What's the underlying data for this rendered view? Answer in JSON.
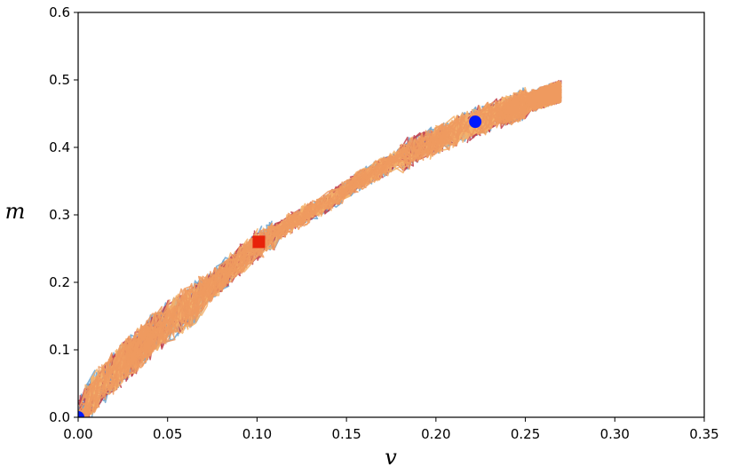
{
  "chart_data": {
    "type": "line",
    "title": "",
    "xlabel": "v",
    "ylabel": "m",
    "xlim": [
      0,
      0.35
    ],
    "ylim": [
      0,
      0.6
    ],
    "xticks": [
      "0.00",
      "0.05",
      "0.10",
      "0.15",
      "0.20",
      "0.25",
      "0.30",
      "0.35"
    ],
    "yticks": [
      "0.0",
      "0.1",
      "0.2",
      "0.3",
      "0.4",
      "0.5",
      "0.6"
    ],
    "grid": false,
    "legend": "none",
    "band_centerline": [
      [
        0.0,
        0.0
      ],
      [
        0.01,
        0.04
      ],
      [
        0.025,
        0.08
      ],
      [
        0.045,
        0.13
      ],
      [
        0.065,
        0.17
      ],
      [
        0.085,
        0.22
      ],
      [
        0.1,
        0.255
      ],
      [
        0.12,
        0.29
      ],
      [
        0.14,
        0.32
      ],
      [
        0.16,
        0.355
      ],
      [
        0.18,
        0.385
      ],
      [
        0.2,
        0.41
      ],
      [
        0.22,
        0.435
      ],
      [
        0.24,
        0.455
      ],
      [
        0.26,
        0.475
      ],
      [
        0.27,
        0.483
      ]
    ],
    "series": [
      {
        "color": "#6aa3cf",
        "values_note": ""
      },
      {
        "color": "#c0404d",
        "values_note": ""
      },
      {
        "color": "#f5b26b",
        "values_note": ""
      },
      {
        "color": "#ee9a5f",
        "values_note": ""
      }
    ],
    "markers": [
      {
        "shape": "circle",
        "color": "#0019ff",
        "x": 0.0,
        "y": 0.0
      },
      {
        "shape": "square",
        "color": "#e8230a",
        "x": 0.101,
        "y": 0.26
      },
      {
        "shape": "circle",
        "color": "#0019ff",
        "x": 0.222,
        "y": 0.438
      }
    ]
  }
}
